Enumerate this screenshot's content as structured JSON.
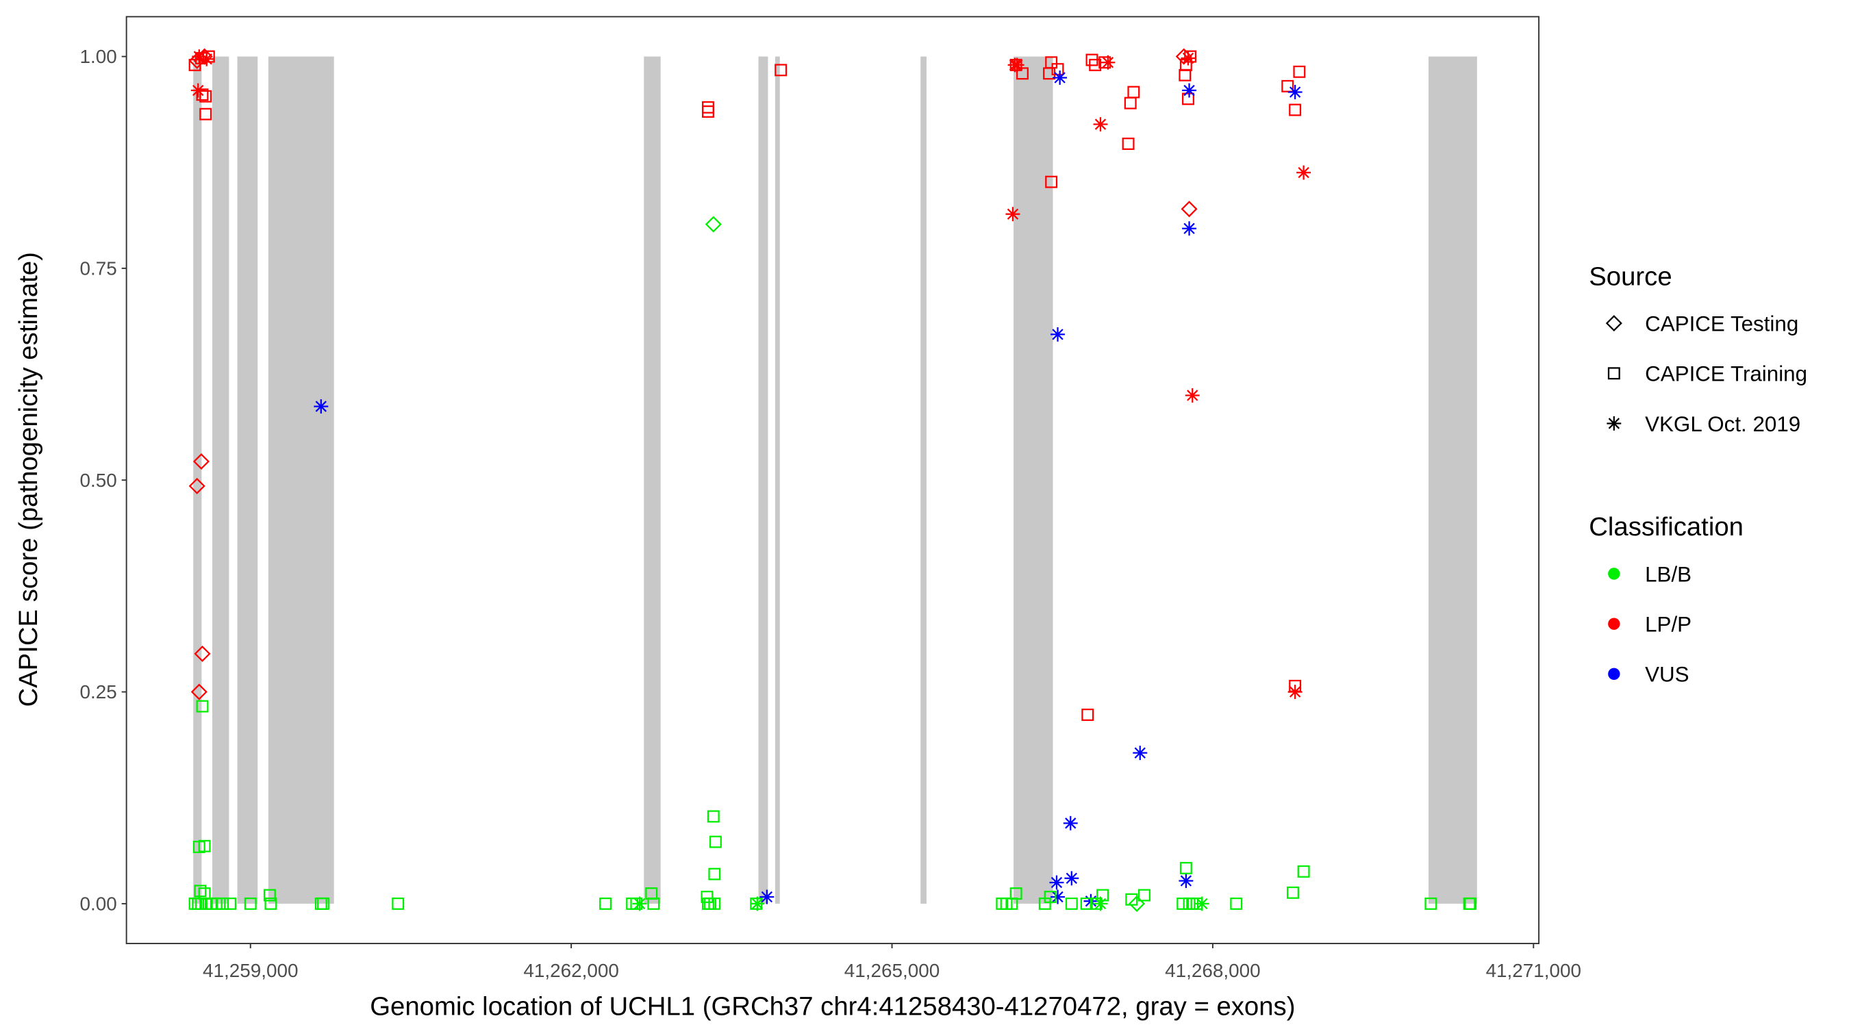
{
  "chart_data": {
    "type": "scatter",
    "xlabel": "Genomic location of UCHL1 (GRCh37 chr4:41258430-41270472, gray = exons)",
    "ylabel": "CAPICE score (pathogenicity estimate)",
    "xlim": [
      41257840,
      41271050
    ],
    "ylim": [
      -0.047,
      1.047
    ],
    "x_ticks": [
      41259000,
      41262000,
      41265000,
      41268000,
      41271000
    ],
    "x_tick_labels": [
      "41,259,000",
      "41,262,000",
      "41,265,000",
      "41,268,000",
      "41,271,000"
    ],
    "y_ticks": [
      0,
      0.25,
      0.5,
      0.75,
      1
    ],
    "y_tick_labels": [
      "0.00",
      "0.25",
      "0.50",
      "0.75",
      "1.00"
    ],
    "grid": false,
    "legend_position": "right",
    "exon_color": "#c8c8c8",
    "exons": [
      [
        41258465,
        41258543
      ],
      [
        41258643,
        41258799
      ],
      [
        41258877,
        41259067
      ],
      [
        41259167,
        41259781
      ],
      [
        41262680,
        41262836
      ],
      [
        41263751,
        41263840
      ],
      [
        41263907,
        41263951
      ],
      [
        41265267,
        41265323
      ],
      [
        41266137,
        41266505
      ],
      [
        41270018,
        41270472
      ]
    ],
    "legend": {
      "source_title": "Source",
      "sources": [
        {
          "key": "Testing",
          "label": "CAPICE Testing",
          "shape": "diamond"
        },
        {
          "key": "Training",
          "label": "CAPICE Training",
          "shape": "square"
        },
        {
          "key": "VKGL",
          "label": "VKGL Oct. 2019",
          "shape": "asterisk"
        }
      ],
      "class_title": "Classification",
      "classes": [
        {
          "key": "LB/B",
          "label": "LB/B",
          "color": "#00ee00"
        },
        {
          "key": "LP/P",
          "label": "LP/P",
          "color": "#ff0000"
        },
        {
          "key": "VUS",
          "label": "VUS",
          "color": "#0000ff"
        }
      ]
    },
    "points": [
      {
        "x": 41258480,
        "y": 0.99,
        "s": "Training",
        "c": "LP/P"
      },
      {
        "x": 41258500,
        "y": 0.995,
        "s": "Testing",
        "c": "LP/P"
      },
      {
        "x": 41258520,
        "y": 1.0,
        "s": "VKGL",
        "c": "LP/P"
      },
      {
        "x": 41258540,
        "y": 0.998,
        "s": "Training",
        "c": "LP/P"
      },
      {
        "x": 41258570,
        "y": 1.0,
        "s": "Testing",
        "c": "LP/P"
      },
      {
        "x": 41258590,
        "y": 0.997,
        "s": "VKGL",
        "c": "LP/P"
      },
      {
        "x": 41258610,
        "y": 1.0,
        "s": "Training",
        "c": "LP/P"
      },
      {
        "x": 41258510,
        "y": 0.96,
        "s": "VKGL",
        "c": "LP/P"
      },
      {
        "x": 41258550,
        "y": 0.955,
        "s": "Training",
        "c": "LP/P"
      },
      {
        "x": 41258580,
        "y": 0.953,
        "s": "Training",
        "c": "LP/P"
      },
      {
        "x": 41258580,
        "y": 0.932,
        "s": "Training",
        "c": "LP/P"
      },
      {
        "x": 41258540,
        "y": 0.522,
        "s": "Testing",
        "c": "LP/P"
      },
      {
        "x": 41258500,
        "y": 0.493,
        "s": "Testing",
        "c": "LP/P"
      },
      {
        "x": 41258550,
        "y": 0.295,
        "s": "Testing",
        "c": "LP/P"
      },
      {
        "x": 41258520,
        "y": 0.25,
        "s": "Testing",
        "c": "LP/P"
      },
      {
        "x": 41258550,
        "y": 0.233,
        "s": "Training",
        "c": "LB/B"
      },
      {
        "x": 41258520,
        "y": 0.067,
        "s": "Training",
        "c": "LB/B"
      },
      {
        "x": 41258570,
        "y": 0.068,
        "s": "Training",
        "c": "LB/B"
      },
      {
        "x": 41258530,
        "y": 0.015,
        "s": "Training",
        "c": "LB/B"
      },
      {
        "x": 41258570,
        "y": 0.012,
        "s": "Training",
        "c": "LB/B"
      },
      {
        "x": 41258480,
        "y": 0.0,
        "s": "Training",
        "c": "LB/B"
      },
      {
        "x": 41258510,
        "y": 0.0,
        "s": "Training",
        "c": "LB/B"
      },
      {
        "x": 41258540,
        "y": 0.0,
        "s": "Training",
        "c": "LB/B"
      },
      {
        "x": 41258590,
        "y": 0.0,
        "s": "Training",
        "c": "LB/B"
      },
      {
        "x": 41258630,
        "y": 0.0,
        "s": "Training",
        "c": "LB/B"
      },
      {
        "x": 41258680,
        "y": 0.0,
        "s": "Training",
        "c": "LB/B"
      },
      {
        "x": 41258740,
        "y": 0.0,
        "s": "Training",
        "c": "LB/B"
      },
      {
        "x": 41258810,
        "y": 0.0,
        "s": "Training",
        "c": "LB/B"
      },
      {
        "x": 41259000,
        "y": 0.0,
        "s": "Training",
        "c": "LB/B"
      },
      {
        "x": 41259180,
        "y": 0.01,
        "s": "Training",
        "c": "LB/B"
      },
      {
        "x": 41259190,
        "y": 0.0,
        "s": "Training",
        "c": "LB/B"
      },
      {
        "x": 41259660,
        "y": 0.0,
        "s": "Training",
        "c": "LB/B"
      },
      {
        "x": 41259680,
        "y": 0.0,
        "s": "Training",
        "c": "LB/B"
      },
      {
        "x": 41260380,
        "y": 0.0,
        "s": "Training",
        "c": "LB/B"
      },
      {
        "x": 41259660,
        "y": 0.587,
        "s": "VKGL",
        "c": "VUS"
      },
      {
        "x": 41262320,
        "y": 0.0,
        "s": "Training",
        "c": "LB/B"
      },
      {
        "x": 41262570,
        "y": 0.0,
        "s": "Training",
        "c": "LB/B"
      },
      {
        "x": 41262610,
        "y": 0.0,
        "s": "Training",
        "c": "LB/B"
      },
      {
        "x": 41262640,
        "y": 0.0,
        "s": "VKGL",
        "c": "LB/B"
      },
      {
        "x": 41262750,
        "y": 0.012,
        "s": "Training",
        "c": "LB/B"
      },
      {
        "x": 41262770,
        "y": 0.0,
        "s": "Training",
        "c": "LB/B"
      },
      {
        "x": 41263270,
        "y": 0.008,
        "s": "Training",
        "c": "LB/B"
      },
      {
        "x": 41263280,
        "y": 0.0,
        "s": "Training",
        "c": "LB/B"
      },
      {
        "x": 41263300,
        "y": 0.0,
        "s": "Training",
        "c": "LB/B"
      },
      {
        "x": 41263340,
        "y": 0.0,
        "s": "Training",
        "c": "LB/B"
      },
      {
        "x": 41263330,
        "y": 0.103,
        "s": "Training",
        "c": "LB/B"
      },
      {
        "x": 41263350,
        "y": 0.073,
        "s": "Training",
        "c": "LB/B"
      },
      {
        "x": 41263340,
        "y": 0.035,
        "s": "Training",
        "c": "LB/B"
      },
      {
        "x": 41263330,
        "y": 0.802,
        "s": "Testing",
        "c": "LB/B"
      },
      {
        "x": 41263730,
        "y": 0.0,
        "s": "Training",
        "c": "LB/B"
      },
      {
        "x": 41263740,
        "y": 0.0,
        "s": "VKGL",
        "c": "LB/B"
      },
      {
        "x": 41263830,
        "y": 0.008,
        "s": "VKGL",
        "c": "VUS"
      },
      {
        "x": 41263280,
        "y": 0.94,
        "s": "Training",
        "c": "LP/P"
      },
      {
        "x": 41263280,
        "y": 0.935,
        "s": "Training",
        "c": "LP/P"
      },
      {
        "x": 41263960,
        "y": 0.984,
        "s": "Training",
        "c": "LP/P"
      },
      {
        "x": 41266150,
        "y": 0.99,
        "s": "VKGL",
        "c": "LP/P"
      },
      {
        "x": 41266170,
        "y": 0.99,
        "s": "VKGL",
        "c": "LP/P"
      },
      {
        "x": 41266160,
        "y": 0.99,
        "s": "Training",
        "c": "LP/P"
      },
      {
        "x": 41266220,
        "y": 0.98,
        "s": "Training",
        "c": "LP/P"
      },
      {
        "x": 41266490,
        "y": 0.993,
        "s": "Training",
        "c": "LP/P"
      },
      {
        "x": 41266470,
        "y": 0.98,
        "s": "Training",
        "c": "LP/P"
      },
      {
        "x": 41266550,
        "y": 0.985,
        "s": "Training",
        "c": "LP/P"
      },
      {
        "x": 41266870,
        "y": 0.996,
        "s": "Training",
        "c": "LP/P"
      },
      {
        "x": 41266900,
        "y": 0.99,
        "s": "Training",
        "c": "LP/P"
      },
      {
        "x": 41266990,
        "y": 0.993,
        "s": "Training",
        "c": "LP/P"
      },
      {
        "x": 41267020,
        "y": 0.993,
        "s": "VKGL",
        "c": "LP/P"
      },
      {
        "x": 41267260,
        "y": 0.958,
        "s": "Training",
        "c": "LP/P"
      },
      {
        "x": 41267230,
        "y": 0.945,
        "s": "Training",
        "c": "LP/P"
      },
      {
        "x": 41267210,
        "y": 0.897,
        "s": "Training",
        "c": "LP/P"
      },
      {
        "x": 41266490,
        "y": 0.852,
        "s": "Training",
        "c": "LP/P"
      },
      {
        "x": 41266830,
        "y": 0.223,
        "s": "Training",
        "c": "LP/P"
      },
      {
        "x": 41266130,
        "y": 0.814,
        "s": "VKGL",
        "c": "LP/P"
      },
      {
        "x": 41266950,
        "y": 0.92,
        "s": "VKGL",
        "c": "LP/P"
      },
      {
        "x": 41267810,
        "y": 0.6,
        "s": "VKGL",
        "c": "LP/P"
      },
      {
        "x": 41268850,
        "y": 0.863,
        "s": "VKGL",
        "c": "LP/P"
      },
      {
        "x": 41268770,
        "y": 0.25,
        "s": "VKGL",
        "c": "LP/P"
      },
      {
        "x": 41268770,
        "y": 0.257,
        "s": "Training",
        "c": "LP/P"
      },
      {
        "x": 41268700,
        "y": 0.965,
        "s": "Training",
        "c": "LP/P"
      },
      {
        "x": 41268810,
        "y": 0.982,
        "s": "Training",
        "c": "LP/P"
      },
      {
        "x": 41268770,
        "y": 0.937,
        "s": "Training",
        "c": "LP/P"
      },
      {
        "x": 41267730,
        "y": 1.0,
        "s": "Testing",
        "c": "LP/P"
      },
      {
        "x": 41267770,
        "y": 0.998,
        "s": "VKGL",
        "c": "LP/P"
      },
      {
        "x": 41267790,
        "y": 1.0,
        "s": "Training",
        "c": "LP/P"
      },
      {
        "x": 41267750,
        "y": 0.99,
        "s": "Training",
        "c": "LP/P"
      },
      {
        "x": 41267740,
        "y": 0.978,
        "s": "Training",
        "c": "LP/P"
      },
      {
        "x": 41267770,
        "y": 0.95,
        "s": "Training",
        "c": "LP/P"
      },
      {
        "x": 41267780,
        "y": 0.82,
        "s": "Testing",
        "c": "LP/P"
      },
      {
        "x": 41266570,
        "y": 0.975,
        "s": "VKGL",
        "c": "VUS"
      },
      {
        "x": 41267780,
        "y": 0.96,
        "s": "VKGL",
        "c": "VUS"
      },
      {
        "x": 41268770,
        "y": 0.958,
        "s": "VKGL",
        "c": "VUS"
      },
      {
        "x": 41267780,
        "y": 0.797,
        "s": "VKGL",
        "c": "VUS"
      },
      {
        "x": 41266550,
        "y": 0.672,
        "s": "VKGL",
        "c": "VUS"
      },
      {
        "x": 41267320,
        "y": 0.178,
        "s": "VKGL",
        "c": "VUS"
      },
      {
        "x": 41266670,
        "y": 0.095,
        "s": "VKGL",
        "c": "VUS"
      },
      {
        "x": 41266680,
        "y": 0.03,
        "s": "VKGL",
        "c": "VUS"
      },
      {
        "x": 41266540,
        "y": 0.025,
        "s": "VKGL",
        "c": "VUS"
      },
      {
        "x": 41266550,
        "y": 0.008,
        "s": "VKGL",
        "c": "VUS"
      },
      {
        "x": 41266860,
        "y": 0.003,
        "s": "VKGL",
        "c": "VUS"
      },
      {
        "x": 41267750,
        "y": 0.027,
        "s": "VKGL",
        "c": "VUS"
      },
      {
        "x": 41266030,
        "y": 0.0,
        "s": "Training",
        "c": "LB/B"
      },
      {
        "x": 41266070,
        "y": 0.0,
        "s": "Training",
        "c": "LB/B"
      },
      {
        "x": 41266120,
        "y": 0.0,
        "s": "Training",
        "c": "LB/B"
      },
      {
        "x": 41266160,
        "y": 0.012,
        "s": "Training",
        "c": "LB/B"
      },
      {
        "x": 41266430,
        "y": 0.0,
        "s": "Training",
        "c": "LB/B"
      },
      {
        "x": 41266480,
        "y": 0.008,
        "s": "Training",
        "c": "LB/B"
      },
      {
        "x": 41266680,
        "y": 0.0,
        "s": "Training",
        "c": "LB/B"
      },
      {
        "x": 41266820,
        "y": 0.0,
        "s": "Training",
        "c": "LB/B"
      },
      {
        "x": 41266970,
        "y": 0.01,
        "s": "Training",
        "c": "LB/B"
      },
      {
        "x": 41266910,
        "y": 0.0,
        "s": "Training",
        "c": "LB/B"
      },
      {
        "x": 41266950,
        "y": 0.0,
        "s": "VKGL",
        "c": "LB/B"
      },
      {
        "x": 41267240,
        "y": 0.005,
        "s": "Training",
        "c": "LB/B"
      },
      {
        "x": 41267360,
        "y": 0.01,
        "s": "Training",
        "c": "LB/B"
      },
      {
        "x": 41267290,
        "y": 0.0,
        "s": "Testing",
        "c": "LB/B"
      },
      {
        "x": 41267720,
        "y": 0.0,
        "s": "Training",
        "c": "LB/B"
      },
      {
        "x": 41267750,
        "y": 0.042,
        "s": "Training",
        "c": "LB/B"
      },
      {
        "x": 41267780,
        "y": 0.0,
        "s": "Training",
        "c": "LB/B"
      },
      {
        "x": 41267810,
        "y": 0.0,
        "s": "Training",
        "c": "LB/B"
      },
      {
        "x": 41267850,
        "y": 0.0,
        "s": "Training",
        "c": "LB/B"
      },
      {
        "x": 41267900,
        "y": 0.0,
        "s": "VKGL",
        "c": "LB/B"
      },
      {
        "x": 41268220,
        "y": 0.0,
        "s": "Training",
        "c": "LB/B"
      },
      {
        "x": 41268750,
        "y": 0.013,
        "s": "Training",
        "c": "LB/B"
      },
      {
        "x": 41268850,
        "y": 0.038,
        "s": "Training",
        "c": "LB/B"
      },
      {
        "x": 41270040,
        "y": 0.0,
        "s": "Training",
        "c": "LB/B"
      },
      {
        "x": 41270400,
        "y": 0.0,
        "s": "Training",
        "c": "LB/B"
      },
      {
        "x": 41270410,
        "y": 0.0,
        "s": "Training",
        "c": "LB/B"
      }
    ]
  }
}
